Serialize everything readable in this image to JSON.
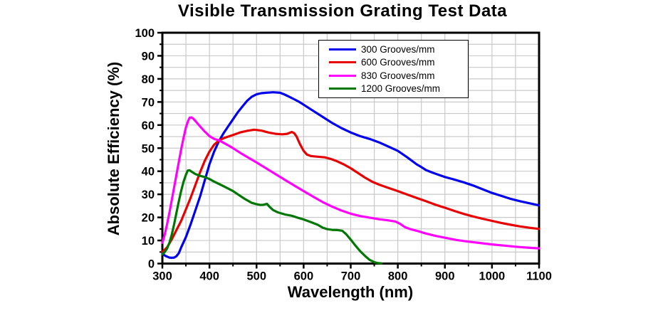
{
  "title": "Visible Transmission Grating Test Data",
  "chart_data": {
    "type": "line",
    "title": "Visible Transmission Grating Test Data",
    "xlabel": "Wavelength (nm)",
    "ylabel": "Absolute Efficiency (%)",
    "xlim": [
      300,
      1100
    ],
    "ylim": [
      0,
      100
    ],
    "x_major_ticks": [
      300,
      400,
      500,
      600,
      700,
      800,
      900,
      1000,
      1100
    ],
    "y_major_ticks": [
      0,
      10,
      20,
      30,
      40,
      50,
      60,
      70,
      80,
      90,
      100
    ],
    "x_minor_step": 50,
    "y_minor_step": 5,
    "grid": true,
    "grid_color": "#c9c9c9",
    "frame_color": "#000000",
    "legend_position": "top-center-inside",
    "series": [
      {
        "name": "300 Grooves/mm",
        "color": "#0000ee",
        "points": [
          [
            300,
            4.5
          ],
          [
            305,
            3.5
          ],
          [
            310,
            3
          ],
          [
            315,
            2.6
          ],
          [
            320,
            2.5
          ],
          [
            325,
            2.6
          ],
          [
            330,
            3.2
          ],
          [
            335,
            4.5
          ],
          [
            340,
            7
          ],
          [
            350,
            11.5
          ],
          [
            360,
            17
          ],
          [
            370,
            23
          ],
          [
            380,
            29
          ],
          [
            390,
            36
          ],
          [
            400,
            43
          ],
          [
            410,
            48.5
          ],
          [
            420,
            53
          ],
          [
            430,
            56.5
          ],
          [
            440,
            59.5
          ],
          [
            450,
            62.5
          ],
          [
            460,
            65.5
          ],
          [
            470,
            68
          ],
          [
            480,
            70.5
          ],
          [
            490,
            72.3
          ],
          [
            500,
            73.3
          ],
          [
            510,
            73.8
          ],
          [
            520,
            74
          ],
          [
            535,
            74.2
          ],
          [
            550,
            74
          ],
          [
            560,
            73.2
          ],
          [
            570,
            72.2
          ],
          [
            580,
            71.2
          ],
          [
            590,
            70.1
          ],
          [
            600,
            68.8
          ],
          [
            620,
            66.2
          ],
          [
            640,
            63.6
          ],
          [
            660,
            61
          ],
          [
            680,
            58.7
          ],
          [
            700,
            56.8
          ],
          [
            720,
            55.2
          ],
          [
            740,
            54
          ],
          [
            760,
            52.5
          ],
          [
            780,
            50.7
          ],
          [
            800,
            48.8
          ],
          [
            820,
            46
          ],
          [
            840,
            43
          ],
          [
            850,
            41.8
          ],
          [
            860,
            40.5
          ],
          [
            875,
            39.3
          ],
          [
            890,
            38.2
          ],
          [
            900,
            37.5
          ],
          [
            920,
            36.4
          ],
          [
            940,
            35.2
          ],
          [
            960,
            33.8
          ],
          [
            980,
            32.2
          ],
          [
            1000,
            30.6
          ],
          [
            1020,
            29.3
          ],
          [
            1040,
            28
          ],
          [
            1060,
            27
          ],
          [
            1080,
            26.1
          ],
          [
            1100,
            25.2
          ]
        ]
      },
      {
        "name": "600 Grooves/mm",
        "color": "#e80000",
        "points": [
          [
            300,
            5
          ],
          [
            310,
            7
          ],
          [
            320,
            10.5
          ],
          [
            330,
            14.5
          ],
          [
            340,
            18.5
          ],
          [
            350,
            23.5
          ],
          [
            360,
            28.5
          ],
          [
            370,
            34
          ],
          [
            380,
            39.5
          ],
          [
            390,
            44.5
          ],
          [
            400,
            48.5
          ],
          [
            410,
            51.5
          ],
          [
            420,
            53.3
          ],
          [
            430,
            54.3
          ],
          [
            440,
            55
          ],
          [
            450,
            55.7
          ],
          [
            465,
            56.8
          ],
          [
            480,
            57.5
          ],
          [
            495,
            58
          ],
          [
            510,
            57.6
          ],
          [
            525,
            56.8
          ],
          [
            540,
            56.2
          ],
          [
            555,
            56
          ],
          [
            565,
            56.2
          ],
          [
            575,
            57
          ],
          [
            580,
            56.5
          ],
          [
            585,
            55
          ],
          [
            592,
            51.8
          ],
          [
            600,
            48.8
          ],
          [
            607,
            47.2
          ],
          [
            615,
            46.6
          ],
          [
            630,
            46.3
          ],
          [
            645,
            46
          ],
          [
            658,
            45.3
          ],
          [
            670,
            44.4
          ],
          [
            685,
            43
          ],
          [
            700,
            41.3
          ],
          [
            715,
            39.3
          ],
          [
            730,
            37.3
          ],
          [
            745,
            35.5
          ],
          [
            760,
            34.2
          ],
          [
            780,
            32.8
          ],
          [
            800,
            31.4
          ],
          [
            820,
            29.9
          ],
          [
            840,
            28.4
          ],
          [
            860,
            27
          ],
          [
            880,
            25.5
          ],
          [
            900,
            24.2
          ],
          [
            920,
            22.8
          ],
          [
            940,
            21.5
          ],
          [
            960,
            20.4
          ],
          [
            980,
            19.4
          ],
          [
            1000,
            18.5
          ],
          [
            1020,
            17.6
          ],
          [
            1040,
            16.8
          ],
          [
            1060,
            16.1
          ],
          [
            1080,
            15.5
          ],
          [
            1100,
            15
          ]
        ]
      },
      {
        "name": "830 Grooves/mm",
        "color": "#ff00ff",
        "points": [
          [
            300,
            9
          ],
          [
            305,
            12.5
          ],
          [
            310,
            17
          ],
          [
            315,
            22
          ],
          [
            320,
            27.5
          ],
          [
            325,
            33
          ],
          [
            330,
            38.5
          ],
          [
            335,
            44
          ],
          [
            340,
            49.5
          ],
          [
            345,
            54.5
          ],
          [
            350,
            59
          ],
          [
            355,
            62
          ],
          [
            358,
            63.2
          ],
          [
            362,
            63.3
          ],
          [
            366,
            62.7
          ],
          [
            370,
            61.8
          ],
          [
            375,
            60.6
          ],
          [
            380,
            59.4
          ],
          [
            390,
            57.2
          ],
          [
            400,
            55.2
          ],
          [
            410,
            54
          ],
          [
            420,
            53.4
          ],
          [
            430,
            52.3
          ],
          [
            440,
            51.2
          ],
          [
            450,
            50
          ],
          [
            465,
            48
          ],
          [
            480,
            46.2
          ],
          [
            500,
            43.8
          ],
          [
            520,
            41.3
          ],
          [
            540,
            38.8
          ],
          [
            560,
            36.3
          ],
          [
            580,
            33.8
          ],
          [
            600,
            31.4
          ],
          [
            620,
            29
          ],
          [
            640,
            26.7
          ],
          [
            660,
            24.7
          ],
          [
            680,
            23
          ],
          [
            700,
            21.6
          ],
          [
            720,
            20.6
          ],
          [
            740,
            19.9
          ],
          [
            760,
            19.2
          ],
          [
            780,
            18.7
          ],
          [
            795,
            18.2
          ],
          [
            805,
            17.2
          ],
          [
            815,
            15.8
          ],
          [
            825,
            15
          ],
          [
            840,
            14.2
          ],
          [
            860,
            13
          ],
          [
            880,
            12
          ],
          [
            900,
            11.2
          ],
          [
            925,
            10.2
          ],
          [
            950,
            9.5
          ],
          [
            975,
            8.9
          ],
          [
            1000,
            8.3
          ],
          [
            1025,
            7.8
          ],
          [
            1050,
            7.3
          ],
          [
            1075,
            6.9
          ],
          [
            1100,
            6.6
          ]
        ]
      },
      {
        "name": "1200 Grooves/mm",
        "color": "#007700",
        "points": [
          [
            300,
            4
          ],
          [
            305,
            5
          ],
          [
            310,
            6.5
          ],
          [
            315,
            9
          ],
          [
            320,
            12.5
          ],
          [
            325,
            17
          ],
          [
            330,
            22
          ],
          [
            335,
            27
          ],
          [
            340,
            31.5
          ],
          [
            345,
            35.5
          ],
          [
            350,
            38.5
          ],
          [
            354,
            40.3
          ],
          [
            358,
            40.4
          ],
          [
            362,
            39.8
          ],
          [
            370,
            38.8
          ],
          [
            380,
            38
          ],
          [
            390,
            37.5
          ],
          [
            400,
            36.6
          ],
          [
            410,
            35.5
          ],
          [
            420,
            34.5
          ],
          [
            435,
            33
          ],
          [
            450,
            31.4
          ],
          [
            460,
            30
          ],
          [
            475,
            28
          ],
          [
            490,
            26.3
          ],
          [
            500,
            25.7
          ],
          [
            508,
            25.4
          ],
          [
            515,
            25.5
          ],
          [
            522,
            25.9
          ],
          [
            528,
            24.5
          ],
          [
            535,
            23.2
          ],
          [
            545,
            22.2
          ],
          [
            560,
            21.3
          ],
          [
            575,
            20.7
          ],
          [
            590,
            19.7
          ],
          [
            600,
            19.1
          ],
          [
            615,
            18
          ],
          [
            630,
            16.8
          ],
          [
            640,
            15.6
          ],
          [
            650,
            14.9
          ],
          [
            660,
            14.6
          ],
          [
            672,
            14.5
          ],
          [
            682,
            14.2
          ],
          [
            690,
            12.8
          ],
          [
            700,
            10.4
          ],
          [
            710,
            7.8
          ],
          [
            720,
            5.4
          ],
          [
            730,
            3.4
          ],
          [
            740,
            1.6
          ],
          [
            750,
            0.6
          ],
          [
            758,
            0.2
          ],
          [
            765,
            0.1
          ]
        ]
      }
    ]
  },
  "legend": {
    "items": [
      {
        "label": "300 Grooves/mm",
        "color": "#0000ee"
      },
      {
        "label": "600 Grooves/mm",
        "color": "#e80000"
      },
      {
        "label": "830 Grooves/mm",
        "color": "#ff00ff"
      },
      {
        "label": "1200 Grooves/mm",
        "color": "#007700"
      }
    ]
  },
  "labels": {
    "x_axis": "Wavelength (nm)",
    "y_axis": "Absolute Efficiency (%)"
  }
}
